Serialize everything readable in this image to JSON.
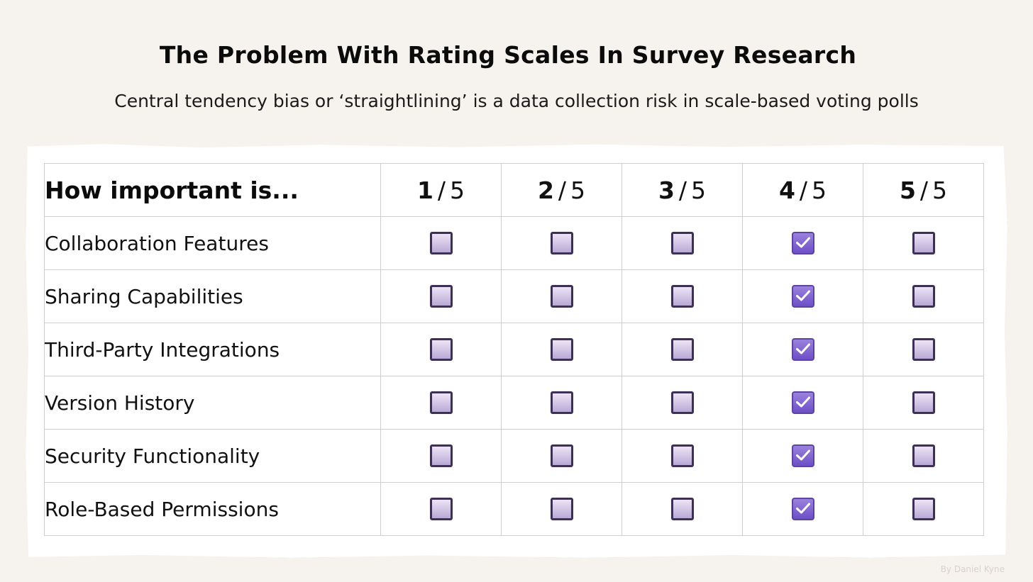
{
  "header": {
    "title": "The Problem With Rating Scales In Survey Research",
    "subtitle": "Central tendency bias or ‘straightlining’ is a data collection risk in scale-based voting polls"
  },
  "table": {
    "question": "How important is...",
    "scale": [
      {
        "num": "1",
        "den": "5"
      },
      {
        "num": "2",
        "den": "5"
      },
      {
        "num": "3",
        "den": "5"
      },
      {
        "num": "4",
        "den": "5"
      },
      {
        "num": "5",
        "den": "5"
      }
    ],
    "separator": "/",
    "rows": [
      {
        "label": "Collaboration Features",
        "selected": 4
      },
      {
        "label": "Sharing Capabilities",
        "selected": 4
      },
      {
        "label": "Third-Party Integrations",
        "selected": 4
      },
      {
        "label": "Version History",
        "selected": 4
      },
      {
        "label": "Security Functionality",
        "selected": 4
      },
      {
        "label": "Role-Based Permissions",
        "selected": 4
      }
    ]
  },
  "footer": {
    "credit": "By Daniel Kyne"
  },
  "colors": {
    "background": "#f6f2ee",
    "checkbox_unchecked": "#b9a9d6",
    "checkbox_checked": "#7a5bd0",
    "checkbox_border": "#3d2f55"
  }
}
